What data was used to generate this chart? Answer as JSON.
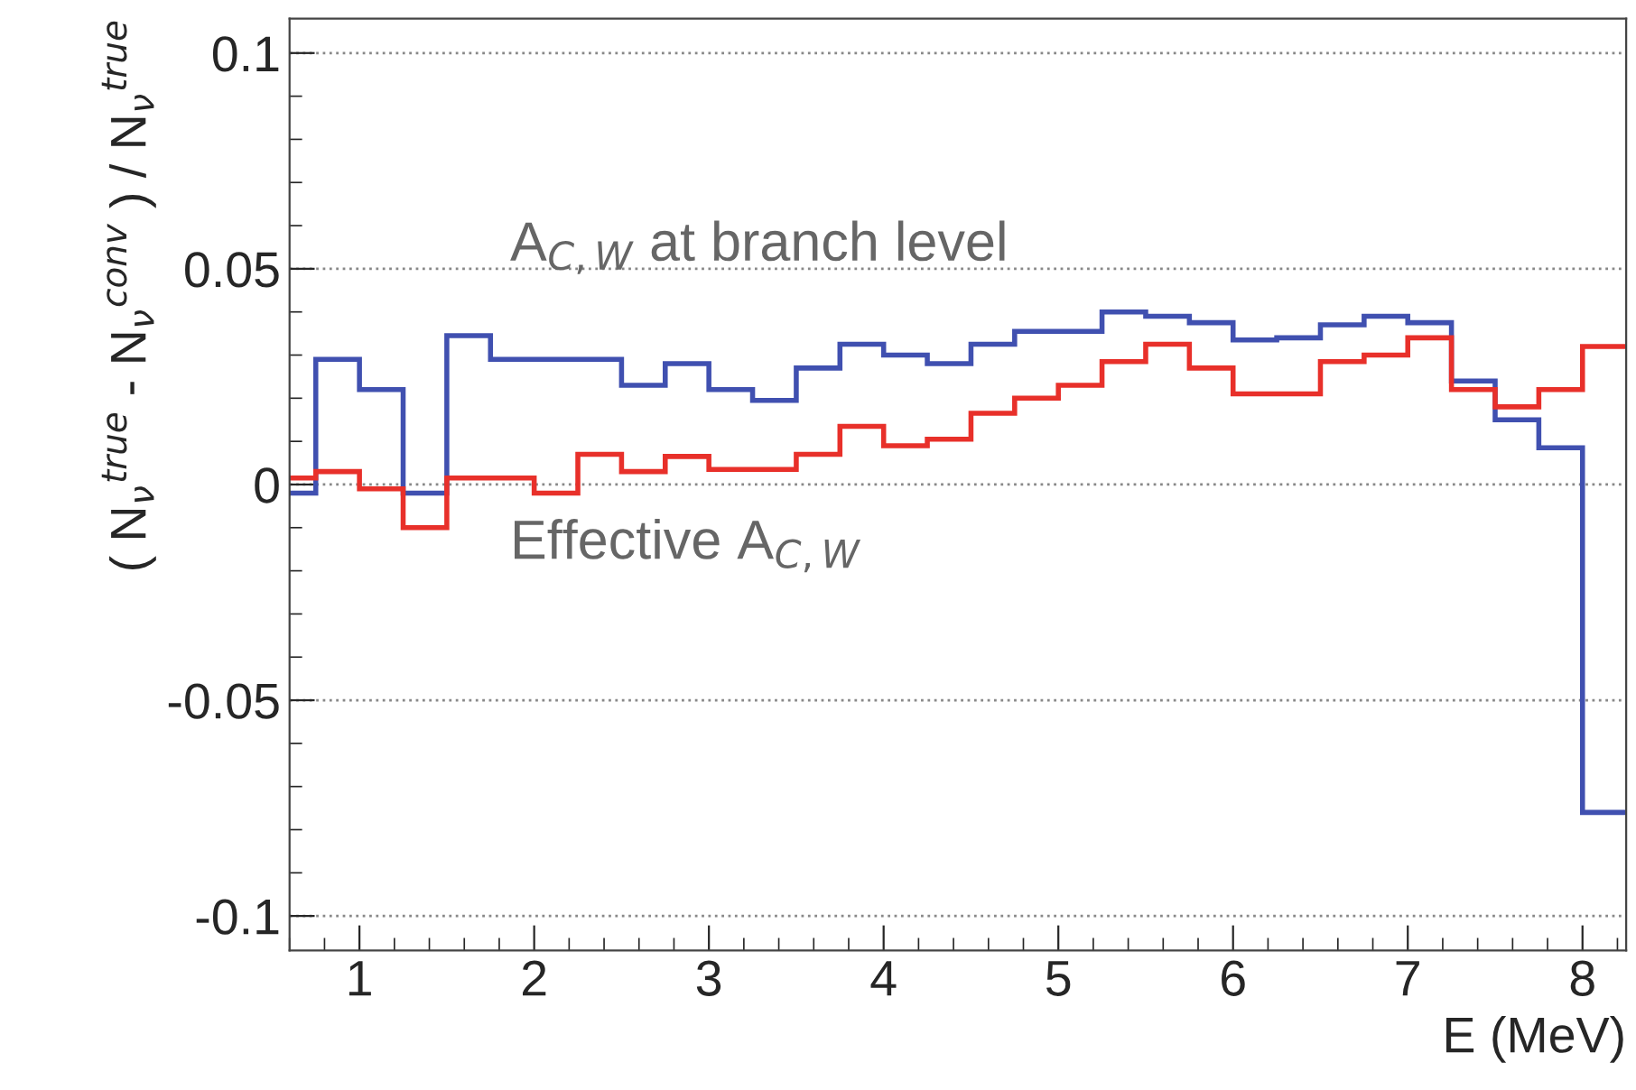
{
  "chart_data": {
    "type": "histogram",
    "xlabel": "E (MeV)",
    "ylabel": "( N$_{ν}$$^{true}$ - N$_{ν}$$^{conv}$ ) / N$_{ν}$$^{true}$",
    "bins": [
      0.6,
      0.75,
      1.0,
      1.25,
      1.5,
      1.75,
      2.0,
      2.25,
      2.5,
      2.75,
      3.0,
      3.25,
      3.5,
      3.75,
      4.0,
      4.25,
      4.5,
      4.75,
      5.0,
      5.25,
      5.5,
      5.75,
      6.0,
      6.25,
      6.5,
      6.75,
      7.0,
      7.25,
      7.5,
      7.75,
      8.0,
      8.25
    ],
    "series": [
      {
        "name": "A$_{C,W}$ at branch level",
        "color": "#4050b0",
        "values": [
          -0.002,
          0.029,
          0.022,
          -0.002,
          0.0345,
          0.029,
          0.029,
          0.029,
          0.023,
          0.028,
          0.022,
          0.0195,
          0.027,
          0.0325,
          0.03,
          0.028,
          0.0325,
          0.0355,
          0.0355,
          0.04,
          0.039,
          0.0375,
          0.0335,
          0.034,
          0.037,
          0.039,
          0.0375,
          0.024,
          0.015,
          0.0085,
          -0.076
        ]
      },
      {
        "name": "Effective A$_{C,W}$",
        "color": "#e8302a",
        "values": [
          0.0015,
          0.003,
          -0.001,
          -0.01,
          0.0015,
          0.0015,
          -0.002,
          0.007,
          0.003,
          0.0065,
          0.0035,
          0.0035,
          0.007,
          0.0135,
          0.009,
          0.0105,
          0.0165,
          0.02,
          0.023,
          0.0285,
          0.0325,
          0.027,
          0.021,
          0.021,
          0.0285,
          0.03,
          0.034,
          0.022,
          0.018,
          0.022,
          0.032
        ]
      }
    ],
    "xlim": [
      0.6,
      8.25
    ],
    "ylim": [
      -0.108,
      0.108
    ],
    "xticks": [
      1,
      2,
      3,
      4,
      5,
      6,
      7,
      8
    ],
    "yticks": [
      -0.1,
      -0.05,
      0,
      0.05,
      0.1
    ],
    "grid": "y",
    "legend": false
  }
}
